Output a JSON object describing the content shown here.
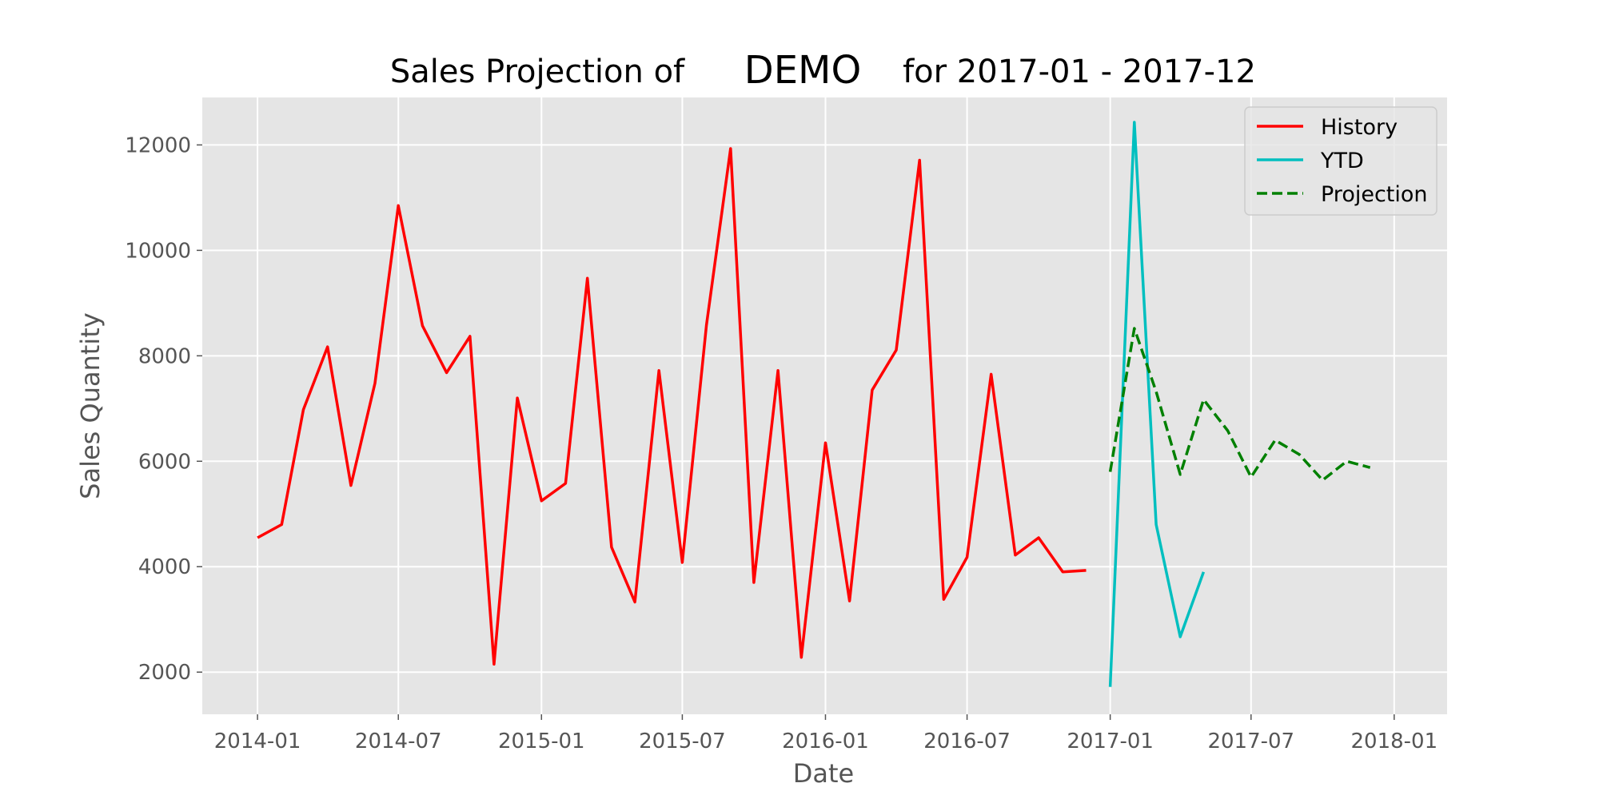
{
  "chart_data": {
    "type": "line",
    "title": {
      "prefix": "Sales Projection of",
      "product": "DEMO",
      "suffix": "for 2017-01 - 2017-12"
    },
    "xlabel": "Date",
    "ylabel": "Sales Quantity",
    "xlim": [
      "2013-10-22",
      "2018-03-10"
    ],
    "ylim": [
      1200,
      12900
    ],
    "x_ticks": [
      "2014-01",
      "2014-07",
      "2015-01",
      "2015-07",
      "2016-01",
      "2016-07",
      "2017-01",
      "2017-07",
      "2018-01"
    ],
    "y_ticks": [
      2000,
      4000,
      6000,
      8000,
      10000,
      12000
    ],
    "grid": true,
    "legend_position": "top-right",
    "series": [
      {
        "name": "History",
        "color": "#ff0000",
        "style": "solid",
        "x": [
          "2014-01",
          "2014-02",
          "2014-03",
          "2014-04",
          "2014-05",
          "2014-06",
          "2014-07",
          "2014-08",
          "2014-09",
          "2014-10",
          "2014-11",
          "2014-12",
          "2015-01",
          "2015-02",
          "2015-03",
          "2015-04",
          "2015-05",
          "2015-06",
          "2015-07",
          "2015-08",
          "2015-09",
          "2015-10",
          "2015-11",
          "2015-12",
          "2016-01",
          "2016-02",
          "2016-03",
          "2016-04",
          "2016-05",
          "2016-06",
          "2016-07",
          "2016-08",
          "2016-09",
          "2016-10",
          "2016-11",
          "2016-12"
        ],
        "values": [
          4550,
          4800,
          6980,
          8170,
          5540,
          7480,
          10850,
          8570,
          7680,
          8370,
          2150,
          7200,
          5250,
          5580,
          9470,
          4370,
          3330,
          7720,
          4080,
          8580,
          11930,
          3700,
          7720,
          2280,
          6350,
          3350,
          7350,
          8110,
          11710,
          3380,
          4180,
          7650,
          4220,
          4550,
          3900,
          3930
        ]
      },
      {
        "name": "YTD",
        "color": "#00bfbf",
        "style": "solid",
        "x": [
          "2017-01",
          "2017-02",
          "2017-03",
          "2017-04",
          "2017-05"
        ],
        "values": [
          1720,
          12430,
          4800,
          2670,
          3900
        ]
      },
      {
        "name": "Projection",
        "color": "#008000",
        "style": "dashed",
        "x": [
          "2017-01",
          "2017-02",
          "2017-03",
          "2017-04",
          "2017-05",
          "2017-06",
          "2017-07",
          "2017-08",
          "2017-09",
          "2017-10",
          "2017-11",
          "2017-12"
        ],
        "values": [
          5800,
          8520,
          7320,
          5750,
          7170,
          6580,
          5700,
          6400,
          6130,
          5640,
          6000,
          5880
        ]
      }
    ]
  }
}
